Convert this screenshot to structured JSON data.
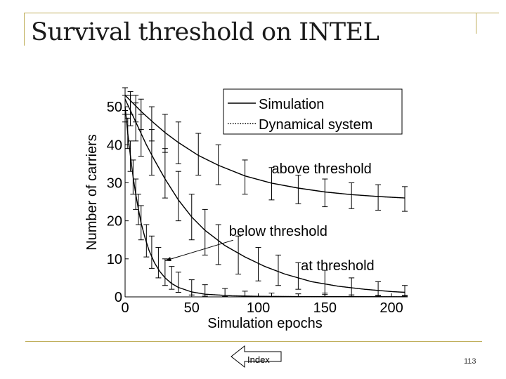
{
  "slide": {
    "title": "Survival threshold on INTEL",
    "page_number": "113"
  },
  "nav": {
    "index_label": "Index"
  },
  "chart_data": {
    "type": "line",
    "xlabel": "Simulation epochs",
    "ylabel": "Number of carriers",
    "xlim": [
      0,
      210
    ],
    "ylim": [
      0,
      55
    ],
    "xticks": [
      0,
      50,
      100,
      150,
      200
    ],
    "yticks": [
      0,
      10,
      20,
      30,
      40,
      50
    ],
    "grid": false,
    "legend": {
      "position": "top-right",
      "entries": [
        {
          "label": "Simulation",
          "style": "solid"
        },
        {
          "label": "Dynamical system",
          "style": "dotted"
        }
      ]
    },
    "annotations": [
      {
        "text": "above threshold",
        "x": 110,
        "y": 34
      },
      {
        "text": "below threshold",
        "x": 78,
        "y": 17.5
      },
      {
        "text": "at threshold",
        "x": 132,
        "y": 8.5
      }
    ],
    "series": [
      {
        "annotation": "above threshold",
        "x": [
          0,
          4,
          8,
          12,
          16,
          22,
          30,
          40,
          55,
          70,
          90,
          110,
          130,
          150,
          170,
          190,
          210
        ],
        "y": [
          53,
          51.6,
          50.2,
          48.8,
          47.5,
          45.6,
          43.2,
          40.6,
          37.2,
          34.6,
          31.8,
          29.9,
          28.6,
          27.6,
          26.9,
          26.4,
          26
        ],
        "error_x": [
          0,
          4,
          8,
          12,
          20,
          30,
          40,
          55,
          70,
          90,
          110,
          130,
          150,
          170,
          190,
          210
        ],
        "error_low": [
          49,
          48,
          46,
          44,
          41,
          38,
          35,
          32,
          29.5,
          27,
          25.5,
          24.5,
          23.7,
          23.2,
          22.8,
          22.5
        ],
        "error_high": [
          55,
          54,
          53,
          52,
          50,
          48,
          46,
          43,
          40,
          36,
          34,
          32,
          31,
          30,
          29.5,
          29
        ]
      },
      {
        "annotation": "at threshold",
        "x": [
          0,
          4,
          8,
          12,
          16,
          22,
          30,
          40,
          50,
          60,
          75,
          90,
          105,
          120,
          140,
          160,
          180,
          200,
          210
        ],
        "y": [
          52,
          49,
          46,
          43,
          40,
          36,
          31,
          25.5,
          21,
          17.5,
          13.5,
          10.5,
          8,
          6,
          4,
          2.8,
          2,
          1.4,
          1.2
        ],
        "error_x": [
          0,
          4,
          8,
          12,
          20,
          30,
          40,
          50,
          60,
          70,
          85,
          100,
          115,
          130,
          150,
          170,
          190,
          210
        ],
        "error_low": [
          48,
          45,
          41,
          37,
          32,
          26,
          20,
          15,
          11,
          8.5,
          6,
          4.2,
          3,
          2,
          1,
          0.5,
          0.3,
          0.2
        ],
        "error_high": [
          55,
          53,
          51,
          48,
          44,
          39,
          33,
          27,
          23,
          19,
          16,
          13,
          11,
          9,
          7,
          5,
          4,
          3
        ]
      },
      {
        "annotation": "below threshold",
        "x": [
          0,
          2,
          4,
          6,
          8,
          10,
          12,
          15,
          18,
          22,
          26,
          30,
          35,
          40,
          50,
          60,
          80,
          100,
          130,
          160,
          210
        ],
        "y": [
          50,
          43,
          37,
          31.5,
          27,
          23,
          19.5,
          15.5,
          12.2,
          9,
          6.7,
          5,
          3.5,
          2.5,
          1.3,
          0.7,
          0.3,
          0.15,
          0.08,
          0.05,
          0.03
        ],
        "error_x": [
          0,
          2,
          4,
          6,
          8,
          10,
          12,
          16,
          20,
          25,
          30,
          35,
          40,
          50,
          60,
          75,
          90,
          110,
          130,
          150,
          170,
          190,
          210
        ],
        "error_low": [
          46,
          39,
          33,
          27,
          23,
          19,
          15,
          10.5,
          7.5,
          5,
          3,
          2,
          1.2,
          0.5,
          0.2,
          0.1,
          0.05,
          0,
          0,
          0,
          0,
          0,
          0
        ],
        "error_high": [
          53,
          47,
          41,
          36,
          31,
          27,
          24,
          19,
          16,
          13,
          10,
          8,
          6.5,
          4.5,
          3.2,
          2.2,
          1.5,
          1,
          0.8,
          0.6,
          0.5,
          0.4,
          0.4
        ]
      }
    ]
  }
}
